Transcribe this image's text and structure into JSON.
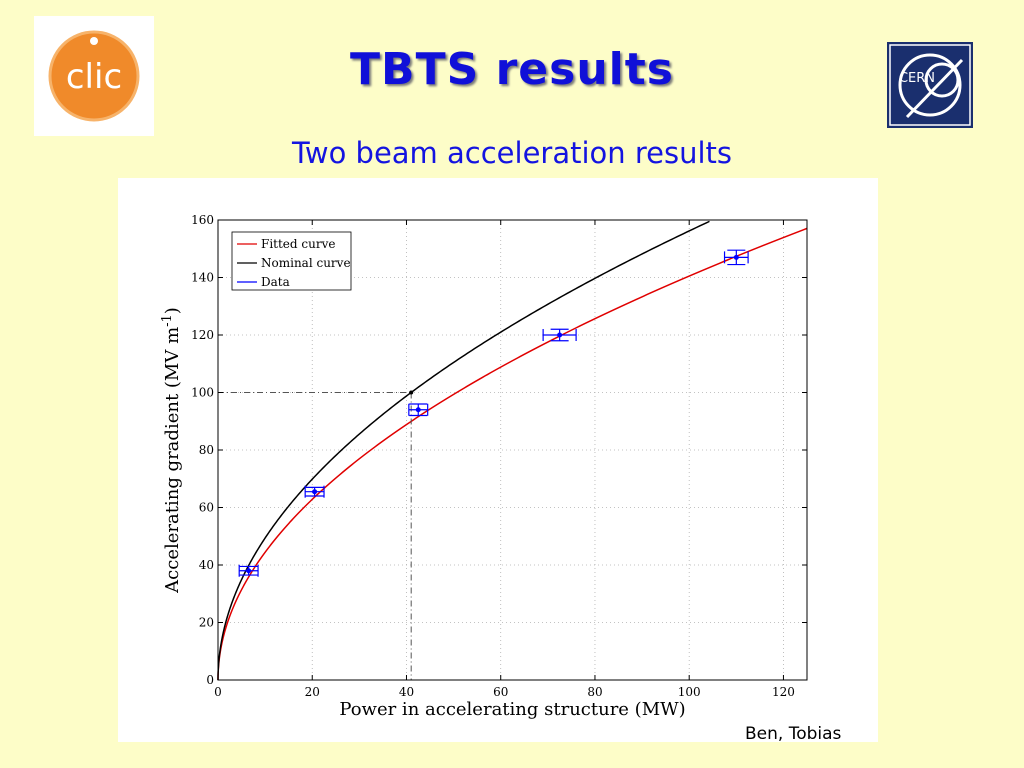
{
  "slide": {
    "title": "TBTS results",
    "subtitle": "Two beam acceleration results",
    "credit": "Ben, Tobias"
  },
  "logos": {
    "left": {
      "text": "clic",
      "icon": "clic-logo-icon",
      "color": "#f08a2a"
    },
    "right": {
      "text": "CERN",
      "icon": "cern-logo-icon",
      "color": "#1a2f6e"
    }
  },
  "chart_data": {
    "type": "line",
    "xlabel": "Power in accelerating structure (MW)",
    "ylabel_main": "Accelerating gradient (MV m",
    "ylabel_sup": "-1",
    "ylabel_close": ")",
    "xlim": [
      0,
      125
    ],
    "ylim": [
      0,
      160
    ],
    "x_ticks": [
      0,
      20,
      40,
      60,
      80,
      100,
      120
    ],
    "y_ticks": [
      0,
      20,
      40,
      60,
      80,
      100,
      120,
      140,
      160
    ],
    "grid": true,
    "legend_position": "top-left",
    "series": [
      {
        "name": "Fitted curve",
        "color": "#e00000",
        "kind": "sqrt",
        "coef": 14.05,
        "x_max": 125
      },
      {
        "name": "Nominal curve",
        "color": "#000000",
        "kind": "sqrt",
        "coef": 15.62,
        "x_max": 105
      },
      {
        "name": "Data",
        "color": "#0000ff",
        "kind": "points",
        "points": [
          {
            "x": 6.5,
            "y": 38,
            "xerr": 2,
            "yerr": 1.5
          },
          {
            "x": 20.5,
            "y": 65.5,
            "xerr": 2,
            "yerr": 1.5
          },
          {
            "x": 42.5,
            "y": 94,
            "xerr": 2,
            "yerr": 2
          },
          {
            "x": 72.5,
            "y": 120,
            "xerr": 3.5,
            "yerr": 2
          },
          {
            "x": 110,
            "y": 147,
            "xerr": 2.5,
            "yerr": 2.5
          }
        ]
      }
    ],
    "annotation": {
      "x": 41,
      "y": 100,
      "style": "dash-dot",
      "color": "#555555"
    }
  }
}
